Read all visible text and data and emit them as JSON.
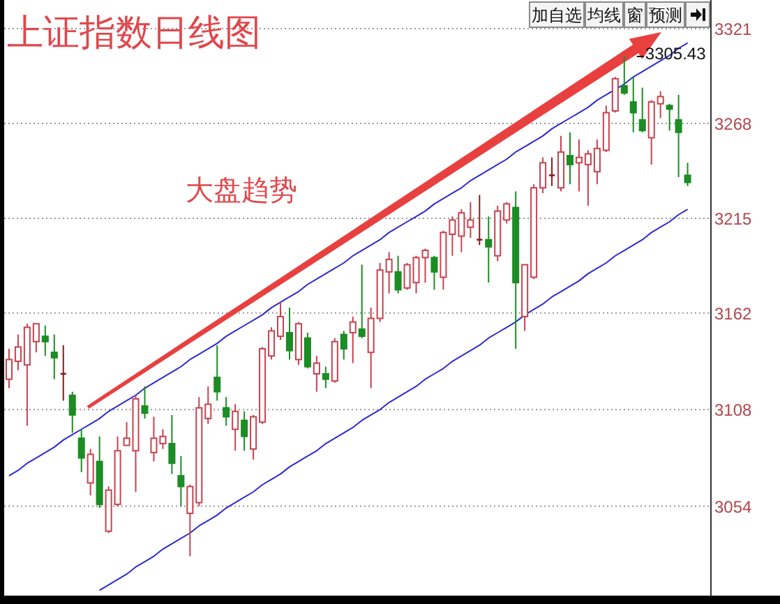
{
  "chart_data": {
    "type": "candlestick",
    "title": "上证指数日线图",
    "annotations": [
      "大盘趋势",
      {
        "text": "3305.43",
        "y": 3305.43
      },
      "加自选",
      "均线",
      "窗",
      "预测"
    ],
    "categories": [
      null,
      null,
      null,
      null,
      null,
      null,
      null,
      null,
      null,
      null,
      null,
      null,
      null,
      null,
      null,
      null,
      null,
      null,
      null,
      null,
      null,
      null,
      null,
      null,
      null,
      null,
      null,
      null,
      null,
      null,
      null,
      null,
      null,
      null,
      null,
      null,
      null,
      null,
      null,
      null,
      null,
      null,
      null,
      null,
      null,
      null,
      null,
      null,
      null,
      null,
      null,
      null,
      null,
      null,
      null,
      null,
      null,
      null,
      null,
      null,
      null,
      null,
      null,
      null,
      null,
      null,
      null,
      null,
      null,
      null,
      null,
      null,
      null,
      null,
      null,
      null
    ],
    "ohlc": [
      [
        3125,
        3142,
        3120,
        3136
      ],
      [
        3135,
        3150,
        3130,
        3143
      ],
      [
        3133,
        3156,
        3099,
        3154
      ],
      [
        3146,
        3156,
        3140,
        3156
      ],
      [
        3149,
        3155,
        3138,
        3146
      ],
      [
        3140,
        3150,
        3125,
        3137
      ],
      [
        3128,
        3144,
        3113,
        3128
      ],
      [
        3116,
        3118,
        3095,
        3105
      ],
      [
        3092,
        3097,
        3073,
        3081
      ],
      [
        3067,
        3086,
        3060,
        3083
      ],
      [
        3079,
        3093,
        3053,
        3055
      ],
      [
        3040,
        3065,
        3039,
        3063
      ],
      [
        3055,
        3093,
        3054,
        3085
      ],
      [
        3088,
        3101,
        3088,
        3092
      ],
      [
        3085,
        3116,
        3062,
        3114
      ],
      [
        3110,
        3121,
        3103,
        3106
      ],
      [
        3084,
        3104,
        3079,
        3092
      ],
      [
        3089,
        3097,
        3086,
        3093
      ],
      [
        3089,
        3105,
        3072,
        3078
      ],
      [
        3071,
        3082,
        3054,
        3065
      ],
      [
        3050,
        3066,
        3026,
        3065
      ],
      [
        3056,
        3115,
        3054,
        3109
      ],
      [
        3103,
        3121,
        3100,
        3111
      ],
      [
        3126,
        3144,
        3113,
        3118
      ],
      [
        3109,
        3115,
        3099,
        3104
      ],
      [
        3097,
        3111,
        3085,
        3107
      ],
      [
        3102,
        3107,
        3085,
        3093
      ],
      [
        3086,
        3105,
        3080,
        3104
      ],
      [
        3101,
        3143,
        3100,
        3142
      ],
      [
        3138,
        3154,
        3136,
        3152
      ],
      [
        3149,
        3168,
        3147,
        3160
      ],
      [
        3151,
        3165,
        3136,
        3141
      ],
      [
        3136,
        3157,
        3133,
        3156
      ],
      [
        3148,
        3151,
        3131,
        3132
      ],
      [
        3128,
        3138,
        3118,
        3134
      ],
      [
        3128,
        3132,
        3120,
        3125
      ],
      [
        3124,
        3148,
        3123,
        3146
      ],
      [
        3150,
        3152,
        3136,
        3142
      ],
      [
        3151,
        3160,
        3134,
        3157
      ],
      [
        3153,
        3189,
        3148,
        3149
      ],
      [
        3140,
        3165,
        3120,
        3159
      ],
      [
        3159,
        3190,
        3157,
        3186
      ],
      [
        3185,
        3196,
        3173,
        3192
      ],
      [
        3185,
        3194,
        3173,
        3175
      ],
      [
        3176,
        3190,
        3175,
        3189
      ],
      [
        3179,
        3194,
        3173,
        3193
      ],
      [
        3193,
        3198,
        3179,
        3197
      ],
      [
        3193,
        3194,
        3175,
        3185
      ],
      [
        3182,
        3208,
        3175,
        3207
      ],
      [
        3206,
        3216,
        3194,
        3214
      ],
      [
        3205,
        3220,
        3196,
        3218
      ],
      [
        3210,
        3224,
        3204,
        3214
      ],
      [
        3203,
        3228,
        3200,
        3203
      ],
      [
        3203,
        3216,
        3179,
        3199
      ],
      [
        3194,
        3222,
        3191,
        3219
      ],
      [
        3214,
        3224,
        3212,
        3223
      ],
      [
        3221,
        3230,
        3142,
        3179
      ],
      [
        3160,
        3189,
        3152,
        3189
      ],
      [
        3182,
        3234,
        3181,
        3232
      ],
      [
        3232,
        3249,
        3229,
        3246
      ],
      [
        3239,
        3249,
        3233,
        3239
      ],
      [
        3232,
        3261,
        3230,
        3252
      ],
      [
        3250,
        3263,
        3234,
        3245
      ],
      [
        3246,
        3259,
        3230,
        3249
      ],
      [
        3245,
        3253,
        3222,
        3251
      ],
      [
        3241,
        3259,
        3234,
        3254
      ],
      [
        3253,
        3278,
        3252,
        3274
      ],
      [
        3275,
        3294,
        3274,
        3293
      ],
      [
        3289,
        3305.43,
        3284,
        3285
      ],
      [
        3280,
        3294,
        3263,
        3274
      ],
      [
        3270,
        3288,
        3263,
        3264
      ],
      [
        3260,
        3281,
        3245,
        3280
      ],
      [
        3279,
        3286,
        3271,
        3283
      ],
      [
        3278,
        3279,
        3264,
        3276
      ],
      [
        3270,
        3284,
        3238,
        3263
      ],
      [
        3239,
        3246,
        3233,
        3235
      ]
    ],
    "colors": [
      "#c8424f",
      "#c8424f",
      "#c8424f",
      "#c8424f",
      "#1c8c24",
      "#1c8c24",
      "#8b1a1a",
      "#1c8c24",
      "#1c8c24",
      "#c8424f",
      "#1c8c24",
      "#c8424f",
      "#c8424f",
      "#c8424f",
      "#c8424f",
      "#1c8c24",
      "#c8424f",
      "#c8424f",
      "#1c8c24",
      "#1c8c24",
      "#c8424f",
      "#c8424f",
      "#c8424f",
      "#1c8c24",
      "#1c8c24",
      "#c8424f",
      "#1c8c24",
      "#c8424f",
      "#c8424f",
      "#c8424f",
      "#c8424f",
      "#1c8c24",
      "#c8424f",
      "#1c8c24",
      "#c8424f",
      "#1c8c24",
      "#c8424f",
      "#1c8c24",
      "#c8424f",
      "#1c8c24",
      "#c8424f",
      "#c8424f",
      "#c8424f",
      "#1c8c24",
      "#c8424f",
      "#c8424f",
      "#c8424f",
      "#1c8c24",
      "#c8424f",
      "#c8424f",
      "#c8424f",
      "#c8424f",
      "#8b1a1a",
      "#1c8c24",
      "#c8424f",
      "#c8424f",
      "#1c8c24",
      "#c8424f",
      "#c8424f",
      "#c8424f",
      "#8b1a1a",
      "#c8424f",
      "#1c8c24",
      "#c8424f",
      "#c8424f",
      "#c8424f",
      "#c8424f",
      "#c8424f",
      "#1c8c24",
      "#1c8c24",
      "#1c8c24",
      "#c8424f",
      "#c8424f",
      "#1c8c24",
      "#1c8c24",
      "#1c8c24"
    ],
    "series": [
      {
        "type": "line",
        "color": "#2b2bd0",
        "values": [
          3071,
          3074,
          3078,
          3081,
          3084,
          3087,
          3091,
          3094,
          3097,
          3100,
          3103,
          3107,
          3110,
          3113,
          3116,
          3120,
          3123,
          3126,
          3129,
          3132,
          3136,
          3139,
          3142,
          3145,
          3149,
          3152,
          3155,
          3158,
          3161,
          3165,
          3168,
          3171,
          3174,
          3178,
          3181,
          3184,
          3187,
          3190,
          3194,
          3197,
          3200,
          3203,
          3207,
          3210,
          3213,
          3216,
          3219,
          3223,
          3226,
          3229,
          3232,
          3236,
          3239,
          3242,
          3245,
          3248,
          3252,
          3255,
          3258,
          3261,
          3265,
          3268,
          3271,
          3274,
          3277,
          3281,
          3284,
          3287,
          3290,
          3294,
          3297,
          3300,
          3303,
          3306,
          3310,
          3313
        ]
      },
      {
        "type": "line",
        "color": "#2b2bd0",
        "values": [
          null,
          null,
          null,
          null,
          null,
          null,
          null,
          null,
          null,
          null,
          3007,
          3010,
          3013,
          3016,
          3020,
          3023,
          3026,
          3030,
          3033,
          3036,
          3039,
          3043,
          3046,
          3049,
          3053,
          3056,
          3059,
          3062,
          3066,
          3069,
          3072,
          3076,
          3079,
          3082,
          3085,
          3089,
          3092,
          3095,
          3098,
          3102,
          3105,
          3108,
          3112,
          3115,
          3118,
          3121,
          3125,
          3128,
          3131,
          3135,
          3138,
          3141,
          3144,
          3148,
          3151,
          3154,
          3157,
          3161,
          3164,
          3167,
          3171,
          3174,
          3177,
          3180,
          3184,
          3187,
          3190,
          3194,
          3197,
          3200,
          3203,
          3207,
          3210,
          3213,
          3217,
          3220
        ]
      }
    ],
    "ylim": [
      3004,
      3337
    ],
    "yticks": [
      3054,
      3108,
      3162,
      3215,
      3268,
      3321
    ],
    "grid": "y",
    "tick_labels": "y"
  }
}
